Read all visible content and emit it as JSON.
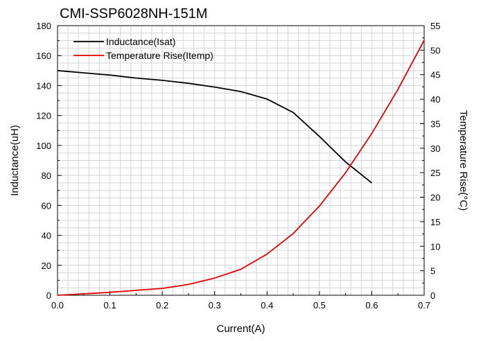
{
  "chart_data": {
    "type": "line",
    "title": "CMI-SSP6028NH-151M",
    "xlabel": "Current(A)",
    "ylabel": "Inductance(uH)",
    "y2label": "Temperature Rise(°C)",
    "xlim": [
      0,
      0.7
    ],
    "ylim": [
      0,
      180
    ],
    "y2lim": [
      0,
      55
    ],
    "grid": true,
    "legend_position": "top-left",
    "x_ticks": [
      "0.0",
      "0.1",
      "0.2",
      "0.3",
      "0.4",
      "0.5",
      "0.6",
      "0.7"
    ],
    "y_ticks": [
      "0",
      "20",
      "40",
      "60",
      "80",
      "100",
      "120",
      "140",
      "160",
      "180"
    ],
    "y2_ticks": [
      "0",
      "5",
      "10",
      "15",
      "20",
      "25",
      "30",
      "35",
      "40",
      "45",
      "50",
      "55"
    ],
    "series": [
      {
        "name": "Inductance(Isat)",
        "axis": "left",
        "color": "#000000",
        "x": [
          0,
          0.05,
          0.1,
          0.15,
          0.2,
          0.25,
          0.3,
          0.35,
          0.4,
          0.45,
          0.5,
          0.55,
          0.6
        ],
        "values": [
          150,
          148.5,
          147,
          145,
          143.5,
          141.5,
          139,
          136,
          131,
          122,
          106,
          89,
          75
        ]
      },
      {
        "name": "Temperature Rise(Itemp)",
        "axis": "right",
        "color": "#e00000",
        "x": [
          0,
          0.05,
          0.1,
          0.15,
          0.2,
          0.25,
          0.3,
          0.35,
          0.4,
          0.45,
          0.5,
          0.55,
          0.6,
          0.65,
          0.7
        ],
        "values": [
          0,
          0.3,
          0.6,
          1.0,
          1.4,
          2.2,
          3.5,
          5.3,
          8.4,
          12.6,
          18.2,
          25.0,
          33.0,
          42.0,
          52.0
        ]
      }
    ]
  }
}
